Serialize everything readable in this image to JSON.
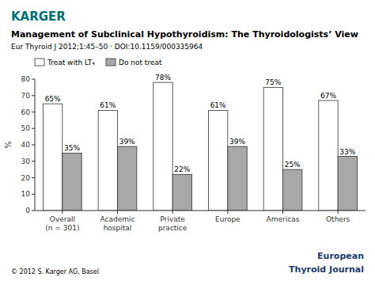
{
  "chart_data": {
    "type": "bar",
    "title": "Management of Subclinical Hypothyroidism: The Thyroidologists’ View",
    "subtitle": "Eur Thyroid J 2012;1:45–50 · DOI:10.1159/000335964",
    "annotations": [
      {
        "text": "KARGER",
        "color": "#007070"
      },
      {
        "text": "© 2012 S. Karger AG, Basel"
      },
      {
        "text": "European",
        "color": "#1a3a6e"
      },
      {
        "text": "Thyroid Journal",
        "color": "#1a3a6e"
      }
    ],
    "categories": [
      "Overall\n(n = 301)",
      "Academic\nhospital",
      "Private\npractice",
      "Europe",
      "Americas",
      "Others"
    ],
    "series": [
      {
        "name": "Treat with LT₄",
        "color": "#ffffff",
        "values": [
          65,
          61,
          78,
          61,
          75,
          67
        ],
        "value_labels": [
          "65%",
          "61%",
          "78%",
          "61%",
          "75%",
          "67%"
        ]
      },
      {
        "name": "Do not treat",
        "color": "#a8a8a8",
        "values": [
          35,
          39,
          22,
          39,
          25,
          33
        ],
        "value_labels": [
          "35%",
          "39%",
          "22%",
          "39%",
          "25%",
          "33%"
        ]
      }
    ],
    "ylabel": "%",
    "ylim": [
      0,
      80
    ],
    "yticks": [
      0,
      10,
      20,
      30,
      40,
      50,
      60,
      70,
      80
    ],
    "data_labels": true,
    "legend": "upper left",
    "grid": false
  }
}
